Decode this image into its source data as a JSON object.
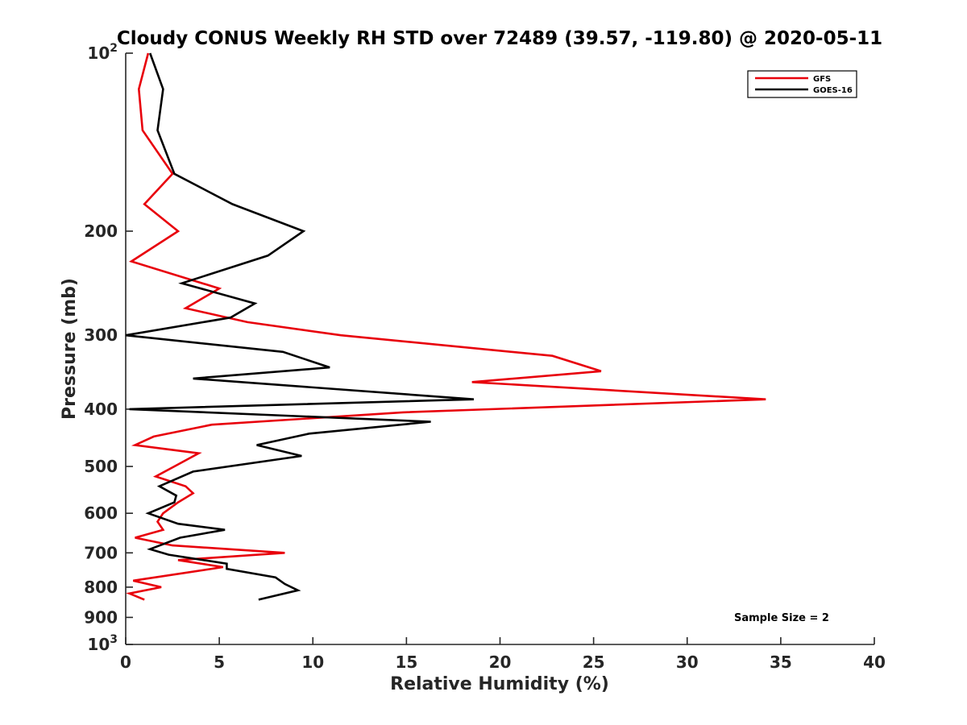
{
  "chart_data": {
    "type": "line",
    "title": "Cloudy CONUS Weekly RH STD over 72489 (39.57, -119.80) @ 2020-05-11",
    "xlabel": "Relative Humidity (%)",
    "ylabel": "Pressure (mb)",
    "xlim": [
      0,
      40
    ],
    "ylim": [
      100,
      1000
    ],
    "y_scale": "log",
    "y_reversed": true,
    "grid": false,
    "legend_position": "top-right",
    "x_ticks": [
      {
        "value": 0,
        "label": "0"
      },
      {
        "value": 5,
        "label": "5"
      },
      {
        "value": 10,
        "label": "10"
      },
      {
        "value": 15,
        "label": "15"
      },
      {
        "value": 20,
        "label": "20"
      },
      {
        "value": 25,
        "label": "25"
      },
      {
        "value": 30,
        "label": "30"
      },
      {
        "value": 35,
        "label": "35"
      },
      {
        "value": 40,
        "label": "40"
      }
    ],
    "y_ticks": [
      {
        "value": 100,
        "label": "10",
        "sup": "2"
      },
      {
        "value": 200,
        "label": "200",
        "sup": ""
      },
      {
        "value": 300,
        "label": "300",
        "sup": ""
      },
      {
        "value": 400,
        "label": "400",
        "sup": ""
      },
      {
        "value": 500,
        "label": "500",
        "sup": ""
      },
      {
        "value": 600,
        "label": "600",
        "sup": ""
      },
      {
        "value": 700,
        "label": "700",
        "sup": ""
      },
      {
        "value": 800,
        "label": "800",
        "sup": ""
      },
      {
        "value": 900,
        "label": "900",
        "sup": ""
      },
      {
        "value": 1000,
        "label": "10",
        "sup": "3"
      }
    ],
    "series": [
      {
        "name": "GFS",
        "color": "#e8000b",
        "points": [
          [
            1.2,
            100
          ],
          [
            0.7,
            115
          ],
          [
            0.9,
            135
          ],
          [
            2.5,
            160
          ],
          [
            1.0,
            180
          ],
          [
            2.8,
            200
          ],
          [
            0.3,
            225
          ],
          [
            5.0,
            250
          ],
          [
            3.2,
            270
          ],
          [
            6.5,
            285
          ],
          [
            11.5,
            300
          ],
          [
            22.8,
            325
          ],
          [
            25.4,
            345
          ],
          [
            18.5,
            360
          ],
          [
            34.2,
            385
          ],
          [
            14.8,
            405
          ],
          [
            4.6,
            425
          ],
          [
            1.5,
            445
          ],
          [
            0.5,
            460
          ],
          [
            3.9,
            475
          ],
          [
            2.6,
            500
          ],
          [
            1.6,
            520
          ],
          [
            3.2,
            540
          ],
          [
            3.6,
            555
          ],
          [
            2.8,
            575
          ],
          [
            2.0,
            600
          ],
          [
            1.7,
            620
          ],
          [
            2.0,
            640
          ],
          [
            0.5,
            660
          ],
          [
            2.5,
            680
          ],
          [
            8.5,
            700
          ],
          [
            2.8,
            720
          ],
          [
            5.2,
            740
          ],
          [
            0.4,
            780
          ],
          [
            1.9,
            800
          ],
          [
            0.2,
            820
          ],
          [
            1.0,
            840
          ]
        ]
      },
      {
        "name": "GOES-16",
        "color": "#000000",
        "points": [
          [
            1.3,
            100
          ],
          [
            2.0,
            115
          ],
          [
            1.7,
            135
          ],
          [
            2.6,
            160
          ],
          [
            5.7,
            180
          ],
          [
            9.5,
            200
          ],
          [
            7.6,
            220
          ],
          [
            3.0,
            245
          ],
          [
            6.9,
            265
          ],
          [
            5.6,
            280
          ],
          [
            0.0,
            300
          ],
          [
            8.4,
            320
          ],
          [
            10.9,
            340
          ],
          [
            3.6,
            355
          ],
          [
            18.6,
            385
          ],
          [
            0.2,
            400
          ],
          [
            16.3,
            420
          ],
          [
            9.8,
            440
          ],
          [
            7.0,
            460
          ],
          [
            9.4,
            480
          ],
          [
            3.6,
            510
          ],
          [
            1.8,
            540
          ],
          [
            2.7,
            560
          ],
          [
            2.6,
            575
          ],
          [
            1.2,
            600
          ],
          [
            2.8,
            625
          ],
          [
            5.3,
            640
          ],
          [
            2.9,
            660
          ],
          [
            1.3,
            690
          ],
          [
            2.3,
            705
          ],
          [
            5.4,
            730
          ],
          [
            5.4,
            745
          ],
          [
            8.0,
            770
          ],
          [
            8.5,
            790
          ],
          [
            9.2,
            810
          ],
          [
            7.1,
            840
          ]
        ]
      }
    ],
    "annotation": "Sample Size = 2"
  }
}
